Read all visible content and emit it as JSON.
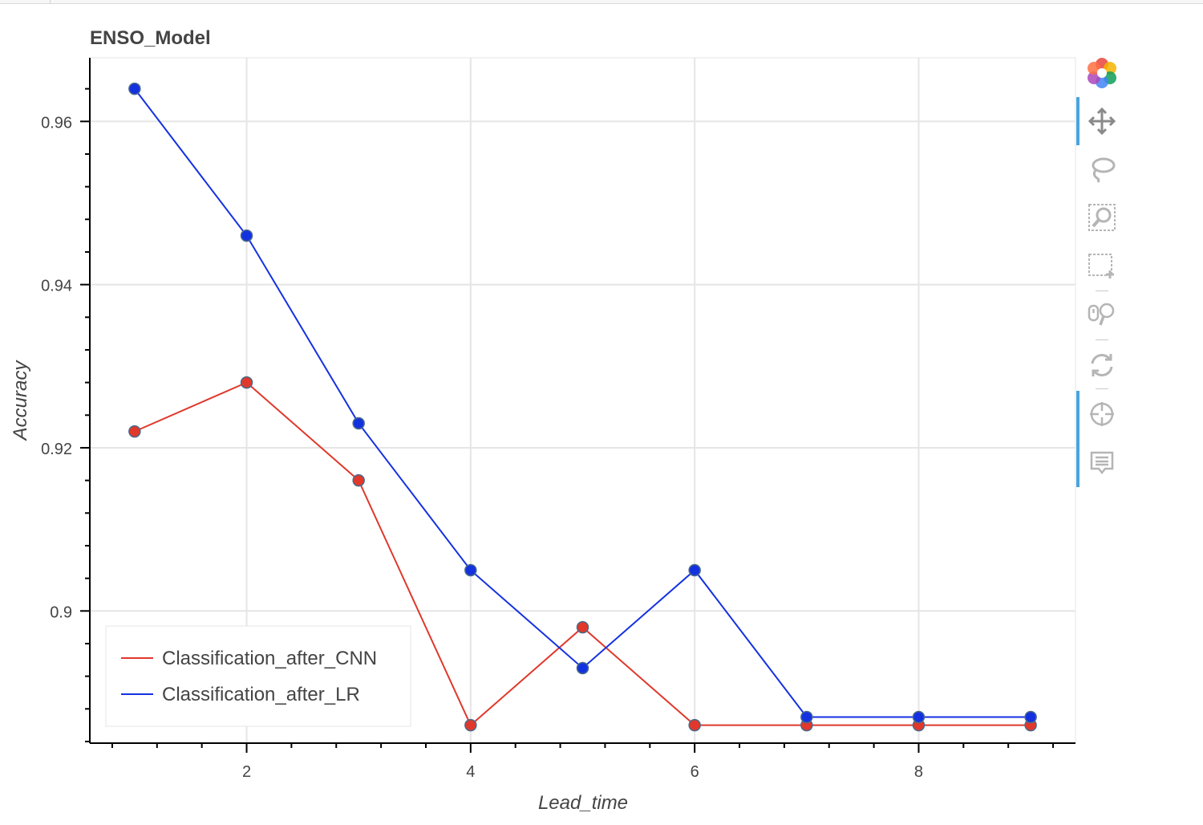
{
  "chart_data": {
    "type": "line",
    "title": "ENSO_Model",
    "xlabel": "Lead_time",
    "ylabel": "Accuracy",
    "xlim": [
      0.6,
      9.4
    ],
    "ylim": [
      0.8838,
      0.9678
    ],
    "x_ticks": [
      2,
      4,
      6,
      8
    ],
    "x_tick_labels": [
      "2",
      "4",
      "6",
      "8"
    ],
    "y_ticks": [
      0.9,
      0.92,
      0.94,
      0.96
    ],
    "y_tick_labels": [
      "0.9",
      "0.92",
      "0.94",
      "0.96"
    ],
    "grid": true,
    "legend_position": "bottom-left",
    "x": [
      1,
      2,
      3,
      4,
      5,
      6,
      7,
      8,
      9
    ],
    "series": [
      {
        "name": "Classification_after_CNN",
        "color": "#e0382b",
        "values": [
          0.922,
          0.928,
          0.916,
          0.886,
          0.898,
          0.886,
          0.886,
          0.886,
          0.886
        ]
      },
      {
        "name": "Classification_after_LR",
        "color": "#1431e0",
        "values": [
          0.964,
          0.946,
          0.923,
          0.905,
          0.893,
          0.905,
          0.887,
          0.887,
          0.887
        ]
      }
    ]
  },
  "toolbar": {
    "tools": [
      "bokeh-logo-icon",
      "pan-icon",
      "lasso-select-icon",
      "box-zoom-icon",
      "box-select-icon",
      "wheel-zoom-icon",
      "reset-icon",
      "crosshair-icon",
      "hover-icon"
    ]
  }
}
